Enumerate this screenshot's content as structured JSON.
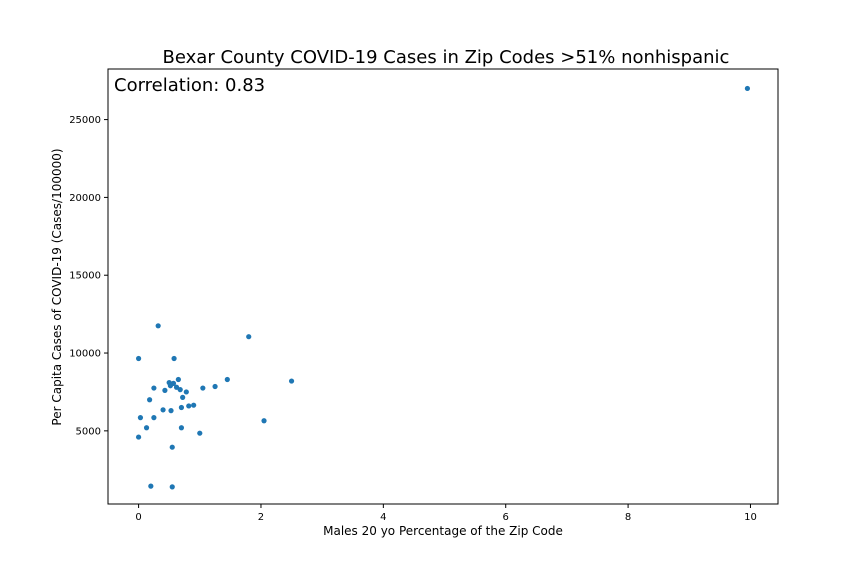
{
  "chart_data": {
    "type": "scatter",
    "title": "Bexar County COVID-19 Cases in Zip Codes >51% nonhispanic",
    "xlabel": "Males 20 yo Percentage of the Zip Code",
    "ylabel": "Per Capita Cases of COVID-19 (Cases/100000)",
    "annotation": "Correlation: 0.83",
    "xlim": [
      -0.5,
      10.45
    ],
    "ylim": [
      300,
      28250
    ],
    "xticks": [
      0,
      2,
      4,
      6,
      8,
      10
    ],
    "yticks": [
      5000,
      10000,
      15000,
      20000,
      25000
    ],
    "grid": false,
    "legend": "none",
    "marker_color": "#1f77b4",
    "points": [
      {
        "x": 0.0,
        "y": 9650
      },
      {
        "x": 0.0,
        "y": 4600
      },
      {
        "x": 0.03,
        "y": 5850
      },
      {
        "x": 0.13,
        "y": 5200
      },
      {
        "x": 0.18,
        "y": 7000
      },
      {
        "x": 0.2,
        "y": 1450
      },
      {
        "x": 0.25,
        "y": 7750
      },
      {
        "x": 0.25,
        "y": 5850
      },
      {
        "x": 0.32,
        "y": 11750
      },
      {
        "x": 0.4,
        "y": 6350
      },
      {
        "x": 0.43,
        "y": 7600
      },
      {
        "x": 0.5,
        "y": 8100
      },
      {
        "x": 0.52,
        "y": 7900
      },
      {
        "x": 0.53,
        "y": 6300
      },
      {
        "x": 0.55,
        "y": 3950
      },
      {
        "x": 0.55,
        "y": 1400
      },
      {
        "x": 0.57,
        "y": 8050
      },
      {
        "x": 0.58,
        "y": 9650
      },
      {
        "x": 0.62,
        "y": 7800
      },
      {
        "x": 0.65,
        "y": 8300
      },
      {
        "x": 0.68,
        "y": 7650
      },
      {
        "x": 0.7,
        "y": 6500
      },
      {
        "x": 0.7,
        "y": 5200
      },
      {
        "x": 0.72,
        "y": 7150
      },
      {
        "x": 0.78,
        "y": 7500
      },
      {
        "x": 0.82,
        "y": 6600
      },
      {
        "x": 0.9,
        "y": 6650
      },
      {
        "x": 1.0,
        "y": 4850
      },
      {
        "x": 1.05,
        "y": 7750
      },
      {
        "x": 1.25,
        "y": 7850
      },
      {
        "x": 1.45,
        "y": 8300
      },
      {
        "x": 1.8,
        "y": 11050
      },
      {
        "x": 2.05,
        "y": 5650
      },
      {
        "x": 2.5,
        "y": 8200
      },
      {
        "x": 9.95,
        "y": 27000
      }
    ]
  }
}
